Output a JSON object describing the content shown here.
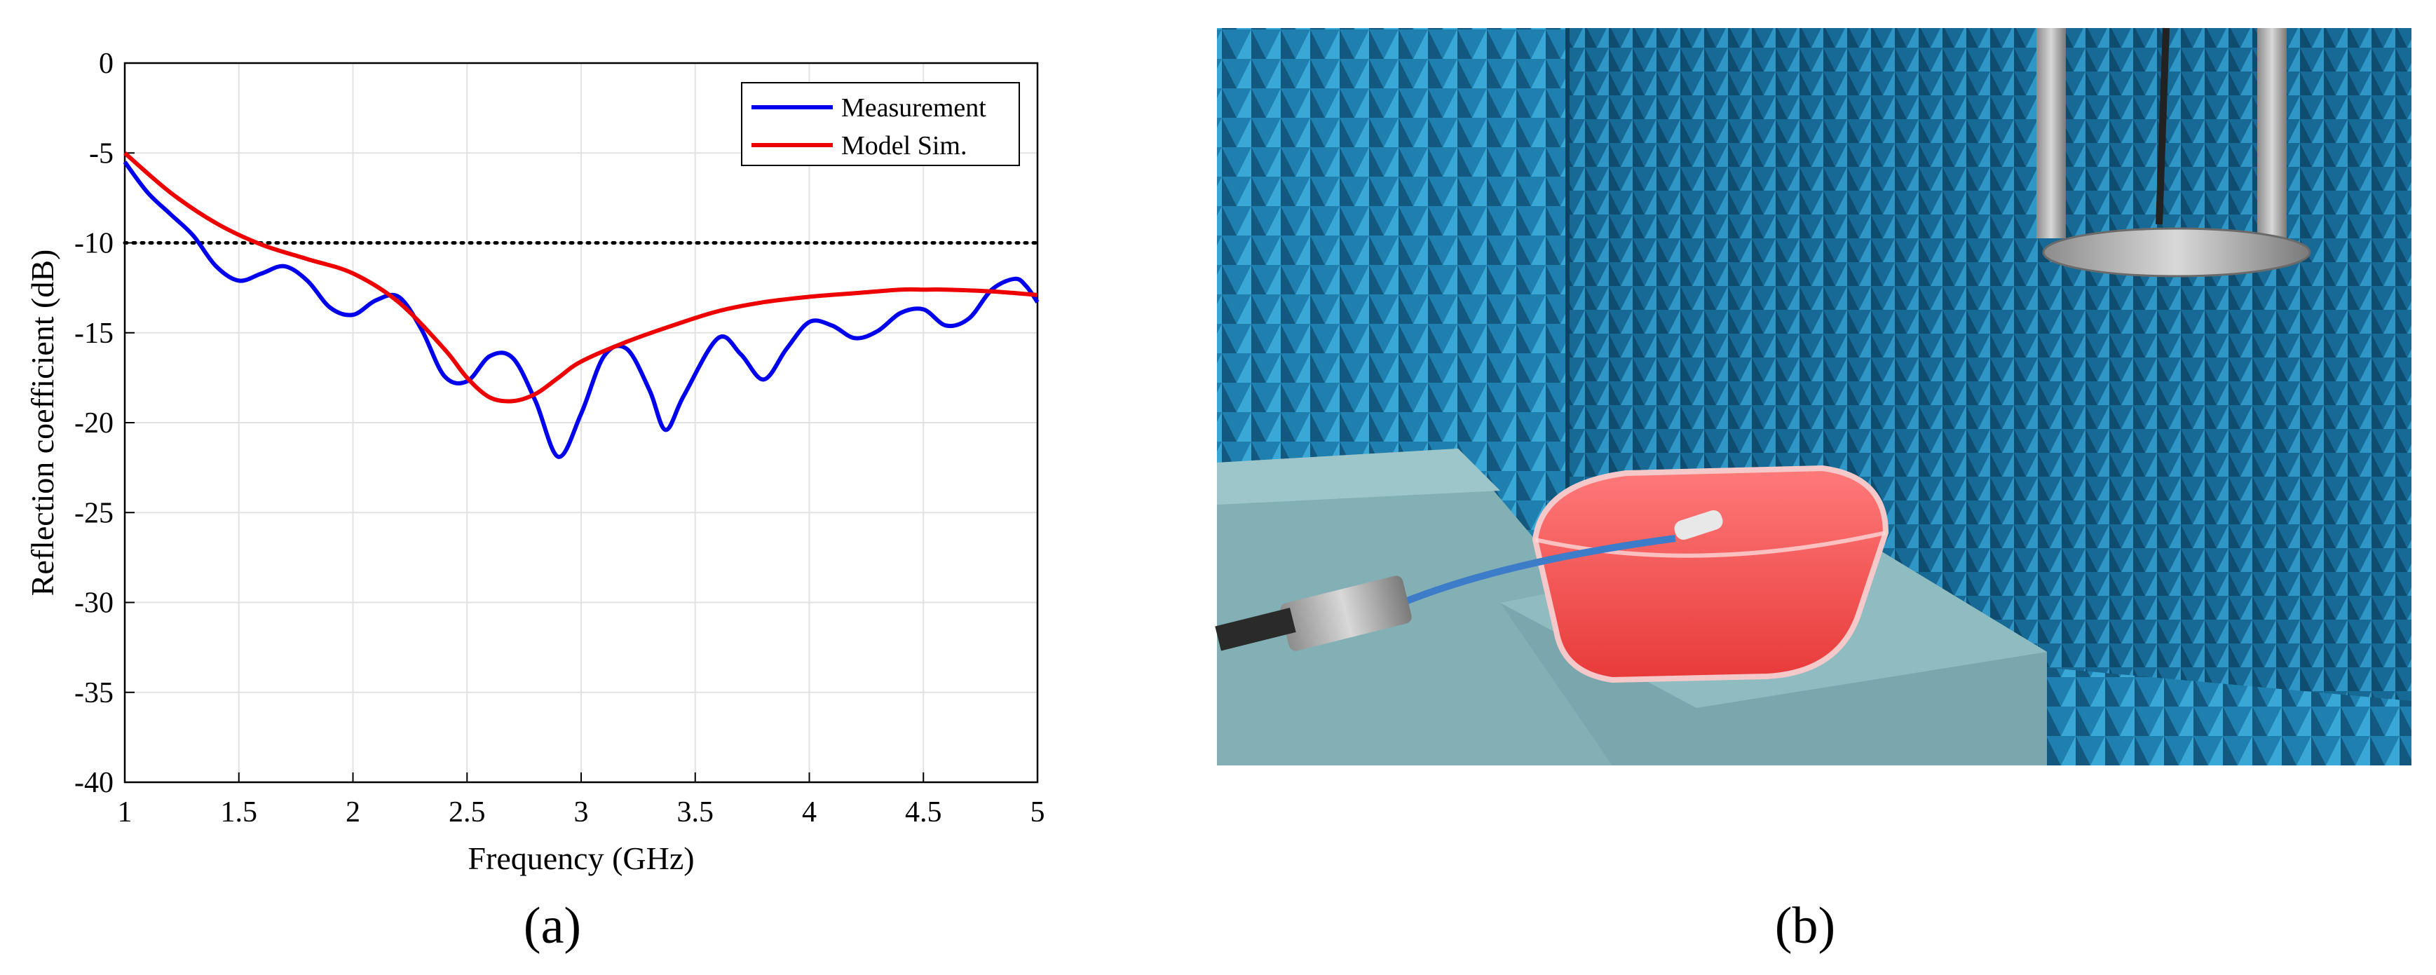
{
  "chart_data": {
    "type": "line",
    "xlabel": "Frequency (GHz)",
    "ylabel": "Reflection coefficient (dB)",
    "xlim": [
      1,
      5
    ],
    "ylim": [
      -40,
      0
    ],
    "xticks": [
      "1",
      "1.5",
      "2",
      "2.5",
      "3",
      "3.5",
      "4",
      "4.5",
      "5"
    ],
    "yticks": [
      "0",
      "-5",
      "-10",
      "-15",
      "-20",
      "-25",
      "-30",
      "-35",
      "-40"
    ],
    "grid": true,
    "legend_position": "top-right",
    "reference_line": {
      "y": -10,
      "style": "dotted",
      "color": "#000000"
    },
    "series": [
      {
        "name": "Measurement",
        "color": "#0000ee",
        "x": [
          1.0,
          1.1,
          1.2,
          1.3,
          1.4,
          1.5,
          1.6,
          1.7,
          1.8,
          1.9,
          2.0,
          2.1,
          2.2,
          2.3,
          2.4,
          2.5,
          2.6,
          2.7,
          2.8,
          2.9,
          3.0,
          3.1,
          3.2,
          3.3,
          3.37,
          3.45,
          3.6,
          3.7,
          3.8,
          3.9,
          4.0,
          4.1,
          4.2,
          4.3,
          4.4,
          4.5,
          4.6,
          4.7,
          4.8,
          4.9,
          4.95,
          5.0
        ],
        "y": [
          -5.5,
          -7.2,
          -8.4,
          -9.6,
          -11.3,
          -12.1,
          -11.7,
          -11.3,
          -12.1,
          -13.6,
          -14.0,
          -13.2,
          -13.0,
          -14.8,
          -17.4,
          -17.7,
          -16.3,
          -16.4,
          -18.8,
          -21.9,
          -19.5,
          -16.3,
          -15.9,
          -18.2,
          -20.4,
          -18.5,
          -15.3,
          -16.2,
          -17.6,
          -15.9,
          -14.4,
          -14.6,
          -15.3,
          -14.9,
          -13.9,
          -13.7,
          -14.6,
          -14.2,
          -12.6,
          -12.0,
          -12.4,
          -13.3
        ]
      },
      {
        "name": "Model Sim.",
        "color": "#ee0000",
        "x": [
          1.0,
          1.2,
          1.4,
          1.6,
          1.8,
          2.0,
          2.2,
          2.4,
          2.5,
          2.6,
          2.7,
          2.8,
          2.9,
          3.0,
          3.2,
          3.4,
          3.6,
          3.8,
          4.0,
          4.2,
          4.4,
          4.5,
          4.6,
          4.8,
          5.0
        ],
        "y": [
          -5.0,
          -7.2,
          -8.9,
          -10.1,
          -10.9,
          -11.7,
          -13.3,
          -15.9,
          -17.5,
          -18.6,
          -18.8,
          -18.4,
          -17.5,
          -16.6,
          -15.5,
          -14.6,
          -13.8,
          -13.3,
          -13.0,
          -12.8,
          -12.6,
          -12.6,
          -12.6,
          -12.7,
          -12.9
        ]
      }
    ]
  },
  "panels": {
    "a_label": "(a)",
    "b_label": "(b)"
  }
}
